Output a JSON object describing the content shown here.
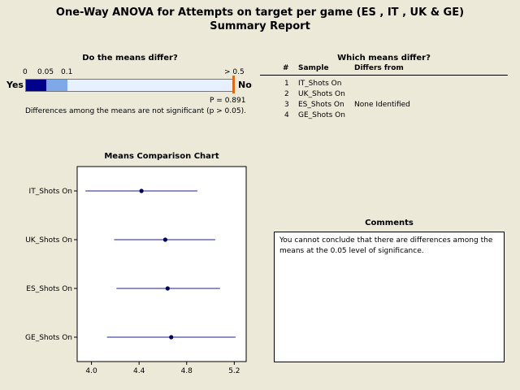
{
  "report": {
    "title_line1": "One-Way ANOVA for Attempts on target per game (ES , IT , UK & GE)",
    "title_line2": "Summary Report"
  },
  "differ": {
    "heading": "Do the means differ?",
    "scale": {
      "t0": "0",
      "t005": "0.05",
      "t01": "0.1",
      "t05": "> 0.5"
    },
    "yes_label": "Yes",
    "no_label": "No",
    "p_value_text": "P = 0.891",
    "p_value": 0.891,
    "conclusion": "Differences among the means are not significant (p > 0.05).",
    "colors": {
      "strong": "#00008B",
      "medium": "#7FA8E8",
      "light": "#E6F0FF",
      "marker": "#E06A10"
    }
  },
  "which": {
    "heading": "Which means differ?",
    "col_num": "#",
    "col_sample": "Sample",
    "col_differs": "Differs from",
    "rows": [
      {
        "num": "1",
        "sample": "IT_Shots On",
        "differs": ""
      },
      {
        "num": "2",
        "sample": "UK_Shots On",
        "differs": ""
      },
      {
        "num": "3",
        "sample": "ES_Shots On",
        "differs": "None Identified"
      },
      {
        "num": "4",
        "sample": "GE_Shots On",
        "differs": ""
      }
    ]
  },
  "means_chart": {
    "heading": "Means Comparison Chart"
  },
  "comments": {
    "heading": "Comments",
    "text": "You cannot conclude that there are differences among the means at the 0.05 level of significance."
  },
  "chart_data": {
    "type": "scatter",
    "title": "Means Comparison Chart",
    "xlim": [
      3.88,
      5.3
    ],
    "xticks": [
      4.0,
      4.4,
      4.8,
      5.2
    ],
    "xtick_labels": [
      "4.0",
      "4.4",
      "4.8",
      "5.2"
    ],
    "grid": false,
    "series": [
      {
        "name": "IT_Shots On",
        "mean": 4.42,
        "lower": 3.95,
        "upper": 4.89
      },
      {
        "name": "UK_Shots On",
        "mean": 4.62,
        "lower": 4.19,
        "upper": 5.04
      },
      {
        "name": "ES_Shots On",
        "mean": 4.64,
        "lower": 4.21,
        "upper": 5.08
      },
      {
        "name": "GE_Shots On",
        "mean": 4.67,
        "lower": 4.13,
        "upper": 5.21
      }
    ],
    "colors": {
      "interval": "#1F1F8F",
      "mean": "#000060"
    }
  }
}
